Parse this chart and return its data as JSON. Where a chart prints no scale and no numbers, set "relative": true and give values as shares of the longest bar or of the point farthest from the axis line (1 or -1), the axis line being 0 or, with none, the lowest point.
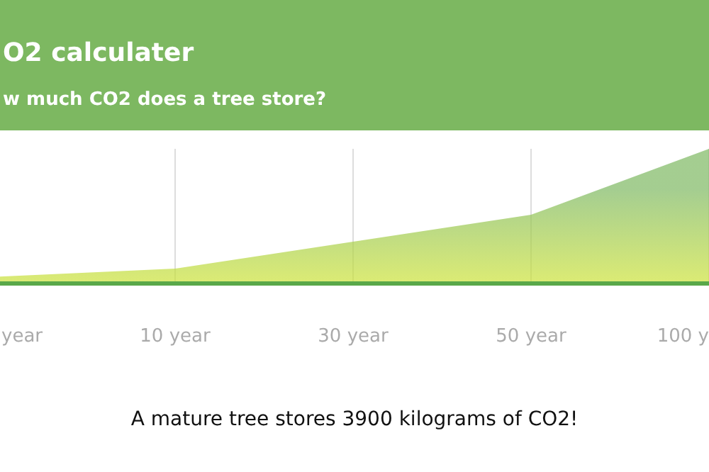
{
  "chart_data": {
    "type": "area",
    "title": "O2 calculater",
    "subtitle": "w much CO2 does a tree store?",
    "categories": [
      "year",
      "10 year",
      "30 year",
      "50 year",
      "100 y"
    ],
    "series": [
      {
        "color": "#7db861",
        "values": [
          0.05,
          0.11,
          0.31,
          0.51,
          1
        ]
      }
    ],
    "relative": true,
    "grid": "x",
    "annotations": [
      "A mature tree stores 3900 kilograms of CO2!"
    ]
  }
}
